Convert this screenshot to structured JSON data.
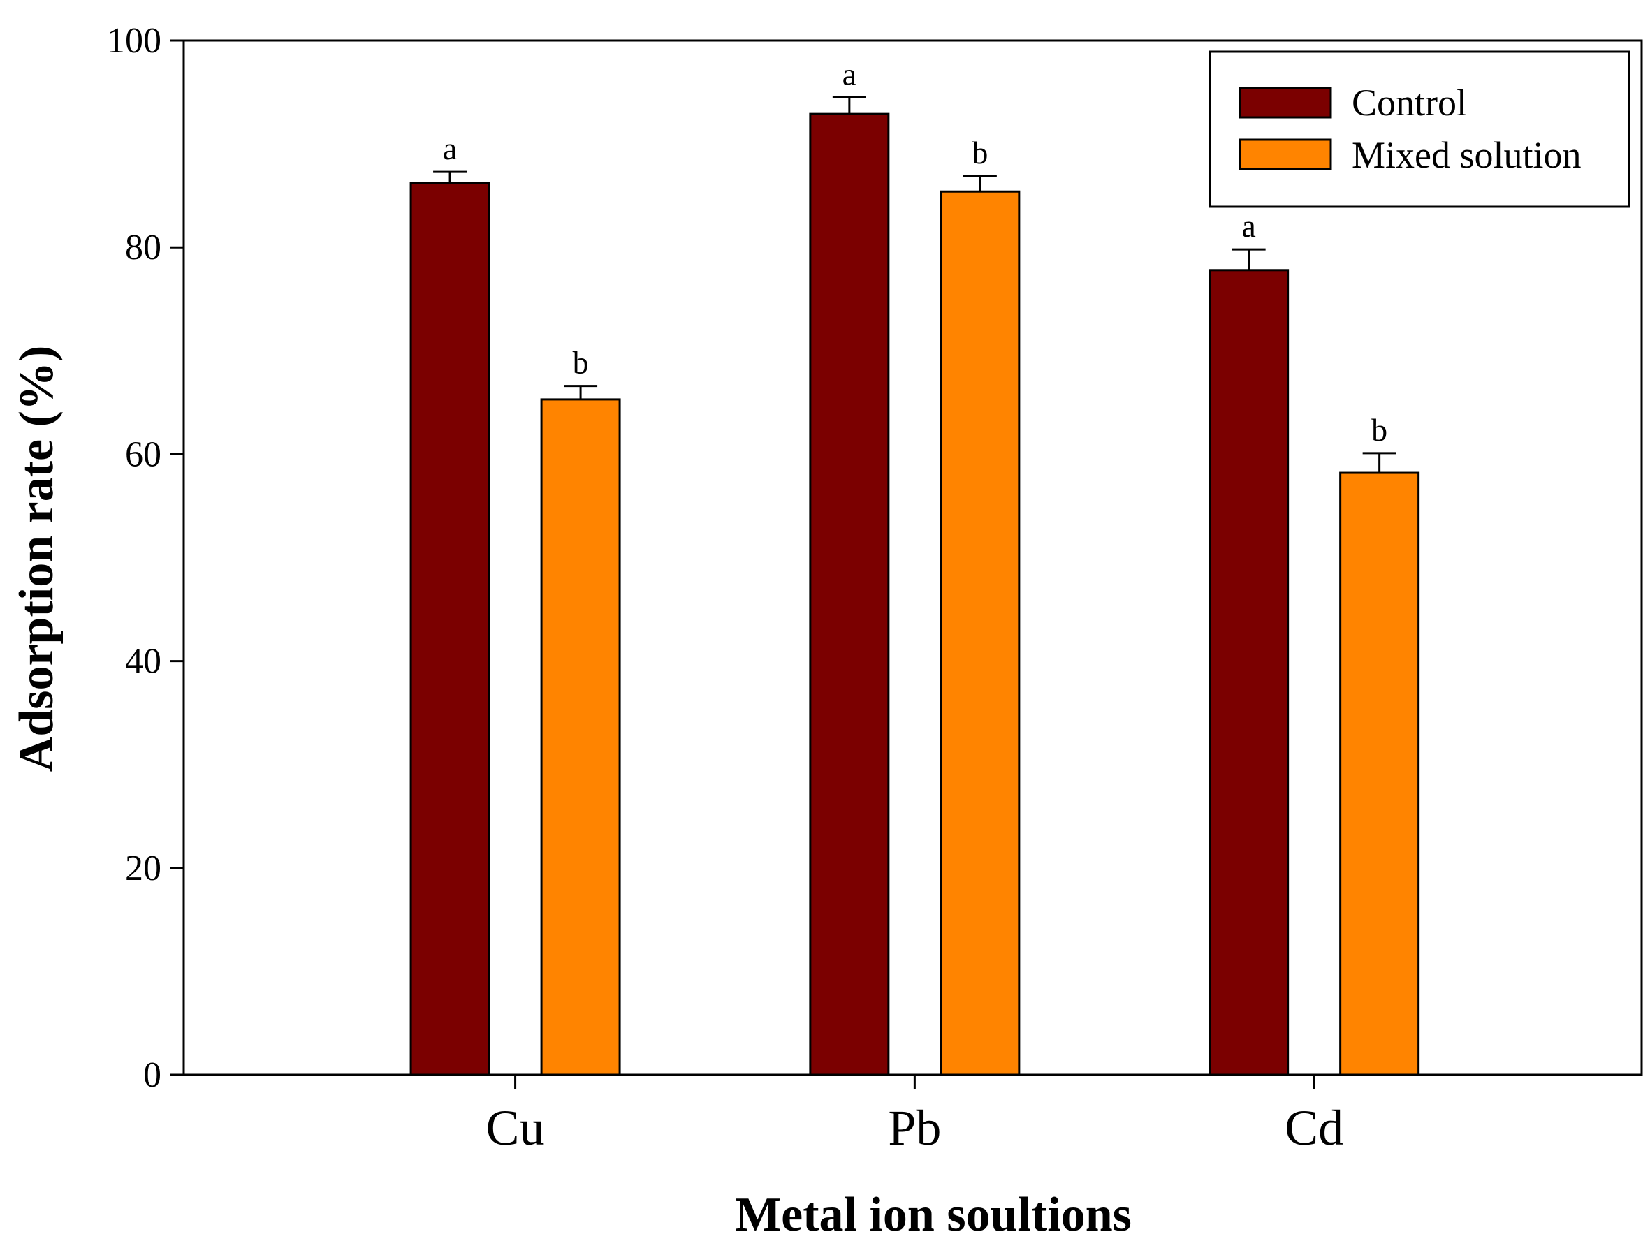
{
  "chart_data": {
    "type": "bar",
    "xlabel": "Metal ion soultions",
    "ylabel": "Adsorption rate (%)",
    "categories": [
      "Cu",
      "Pb",
      "Cd"
    ],
    "ylim": [
      0,
      100
    ],
    "yticks": [
      0,
      20,
      40,
      60,
      80,
      100
    ],
    "grid": false,
    "legend_position": "top-right",
    "series": [
      {
        "name": "Control",
        "color": "#7b0000",
        "values": [
          86.2,
          92.9,
          77.8
        ],
        "errors": [
          1.1,
          1.6,
          2.0
        ],
        "labels": [
          "a",
          "a",
          "a"
        ]
      },
      {
        "name": "Mixed solution",
        "color": "#ff8400",
        "values": [
          65.3,
          85.4,
          58.2
        ],
        "errors": [
          1.3,
          1.5,
          1.9
        ],
        "labels": [
          "b",
          "b",
          "b"
        ]
      }
    ]
  }
}
